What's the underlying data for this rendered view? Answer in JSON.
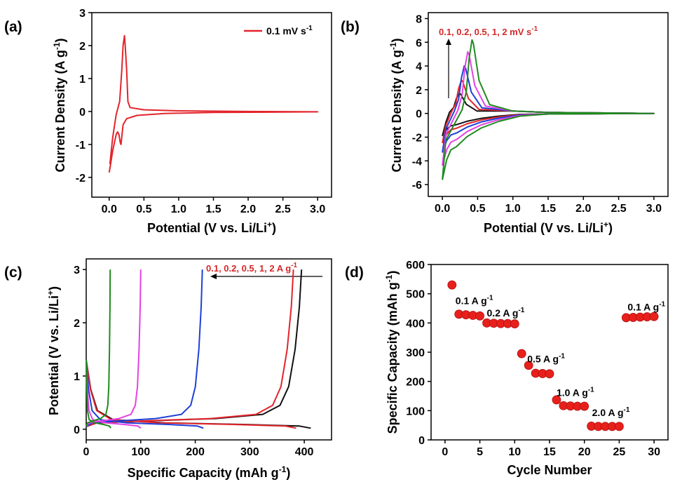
{
  "colors": {
    "red": "#e3242b",
    "black": "#111111",
    "blue": "#1f3fd6",
    "magenta": "#e442e4",
    "green": "#1f8a1f",
    "marker": "#e8201c",
    "annot": "#d62728"
  },
  "chart_data": [
    {
      "panel": "(a)",
      "type": "line",
      "xlabel": "Potential (V vs. Li/Li",
      "xlabel_sup": "+",
      "xlabel_end": ")",
      "ylabel": "Current Density (A g",
      "ylabel_sup": "-1",
      "ylabel_end": ")",
      "xlim": [
        -0.25,
        3.2
      ],
      "ylim": [
        -2.6,
        3
      ],
      "xticks": [
        "0.0",
        "0.5",
        "1.0",
        "1.5",
        "2.0",
        "2.5",
        "3.0"
      ],
      "yticks": [
        "-2",
        "-1",
        "0",
        "1",
        "2",
        "3"
      ],
      "legend": {
        "label": "0.1 mV s",
        "sup": "-1",
        "position": "top-right"
      },
      "series": [
        {
          "name": "0.1 mV s-1",
          "color": "red",
          "points": [
            [
              0.0,
              -1.85
            ],
            [
              0.02,
              -1.6
            ],
            [
              0.05,
              -1.2
            ],
            [
              0.08,
              -0.9
            ],
            [
              0.1,
              -0.7
            ],
            [
              0.12,
              -0.62
            ],
            [
              0.14,
              -0.7
            ],
            [
              0.16,
              -0.95
            ],
            [
              0.17,
              -1.0
            ],
            [
              0.18,
              -0.8
            ],
            [
              0.2,
              -0.4
            ],
            [
              0.25,
              -0.22
            ],
            [
              0.4,
              -0.12
            ],
            [
              0.8,
              -0.06
            ],
            [
              1.5,
              -0.03
            ],
            [
              3.0,
              -0.01
            ],
            [
              2.0,
              0.0
            ],
            [
              1.0,
              0.02
            ],
            [
              0.5,
              0.05
            ],
            [
              0.3,
              0.12
            ],
            [
              0.27,
              0.3
            ],
            [
              0.25,
              1.3
            ],
            [
              0.23,
              2.0
            ],
            [
              0.22,
              2.3
            ],
            [
              0.2,
              2.0
            ],
            [
              0.18,
              1.2
            ],
            [
              0.15,
              0.3
            ],
            [
              0.1,
              -0.1
            ],
            [
              0.05,
              -0.8
            ],
            [
              0.01,
              -1.6
            ]
          ]
        }
      ]
    },
    {
      "panel": "(b)",
      "type": "line",
      "xlabel": "Potential (V vs. Li/Li",
      "xlabel_sup": "+",
      "xlabel_end": ")",
      "ylabel": "Current Density (A g",
      "ylabel_sup": "-1",
      "ylabel_end": ")",
      "xlim": [
        -0.2,
        3.2
      ],
      "ylim": [
        -7,
        8.5
      ],
      "xticks": [
        "0.0",
        "0.5",
        "1.0",
        "1.5",
        "2.0",
        "2.5",
        "3.0"
      ],
      "yticks": [
        "-6",
        "-4",
        "-2",
        "0",
        "2",
        "4",
        "6",
        "8"
      ],
      "annotation": {
        "label": "0.1, 0.2, 0.5, 1, 2 mV s",
        "sup": "-1"
      },
      "series": [
        {
          "name": "0.1 mV s-1",
          "color": "black",
          "peak_x": 0.24,
          "peak_y": 1.7,
          "min_y": -1.9
        },
        {
          "name": "0.2 mV s-1",
          "color": "red",
          "peak_x": 0.27,
          "peak_y": 2.8,
          "min_y": -2.5
        },
        {
          "name": "0.5 mV s-1",
          "color": "blue",
          "peak_x": 0.31,
          "peak_y": 4.0,
          "min_y": -3.3
        },
        {
          "name": "1 mV s-1",
          "color": "magenta",
          "peak_x": 0.36,
          "peak_y": 5.2,
          "min_y": -4.4
        },
        {
          "name": "2 mV s-1",
          "color": "green",
          "peak_x": 0.42,
          "peak_y": 6.2,
          "min_y": -5.6
        }
      ]
    },
    {
      "panel": "(c)",
      "type": "line",
      "xlabel": "Specific Capacity (mAh g",
      "xlabel_sup": "-1",
      "xlabel_end": ")",
      "ylabel": "Potential (V vs. Li/Li",
      "ylabel_sup": "+",
      "ylabel_end": ")",
      "xlim": [
        0,
        450
      ],
      "ylim": [
        -0.2,
        3.2
      ],
      "xticks": [
        "0",
        "100",
        "200",
        "300",
        "400"
      ],
      "yticks": [
        "0",
        "1",
        "2",
        "3"
      ],
      "annotation": {
        "label": "0.1, 0.2, 0.5, 1, 2 A g",
        "sup": "-1"
      },
      "series": [
        {
          "name": "0.1 A g-1",
          "color": "black",
          "discharge_cap": 412,
          "charge_cap": 395
        },
        {
          "name": "0.2 A g-1",
          "color": "red",
          "discharge_cap": 385,
          "charge_cap": 380
        },
        {
          "name": "0.5 A g-1",
          "color": "blue",
          "discharge_cap": 215,
          "charge_cap": 213
        },
        {
          "name": "1 A g-1",
          "color": "magenta",
          "discharge_cap": 100,
          "charge_cap": 100
        },
        {
          "name": "2 A g-1",
          "color": "green",
          "discharge_cap": 45,
          "charge_cap": 44
        }
      ]
    },
    {
      "panel": "(d)",
      "type": "scatter",
      "xlabel": "Cycle Number",
      "ylabel": "Specific Capacity (mAh g",
      "ylabel_sup": "-1",
      "ylabel_end": ")",
      "xlim": [
        -2,
        32
      ],
      "ylim": [
        0,
        600
      ],
      "xticks": [
        "0",
        "5",
        "10",
        "15",
        "20",
        "25",
        "30"
      ],
      "yticks": [
        "0",
        "100",
        "200",
        "300",
        "400",
        "500",
        "600"
      ],
      "x": [
        1,
        2,
        3,
        4,
        5,
        6,
        7,
        8,
        9,
        10,
        11,
        12,
        13,
        14,
        15,
        16,
        17,
        18,
        19,
        20,
        21,
        22,
        23,
        24,
        25,
        26,
        27,
        28,
        29,
        30
      ],
      "y": [
        530,
        430,
        428,
        426,
        424,
        400,
        399,
        398,
        398,
        397,
        295,
        255,
        228,
        227,
        226,
        137,
        117,
        116,
        115,
        115,
        47,
        46,
        46,
        46,
        46,
        418,
        419,
        420,
        421,
        422
      ],
      "rate_labels": [
        {
          "text": "0.1 A g",
          "sup": "-1",
          "x": 1.5,
          "y": 465
        },
        {
          "text": "0.2 A g",
          "sup": "-1",
          "x": 6,
          "y": 422
        },
        {
          "text": "0.5 A g",
          "sup": "-1",
          "x": 11.8,
          "y": 265
        },
        {
          "text": "1.0 A g",
          "sup": "-1",
          "x": 16,
          "y": 150
        },
        {
          "text": "2.0 A g",
          "sup": "-1",
          "x": 21.1,
          "y": 82
        },
        {
          "text": "0.1 A g",
          "sup": "-1",
          "x": 26.2,
          "y": 443
        }
      ]
    }
  ]
}
